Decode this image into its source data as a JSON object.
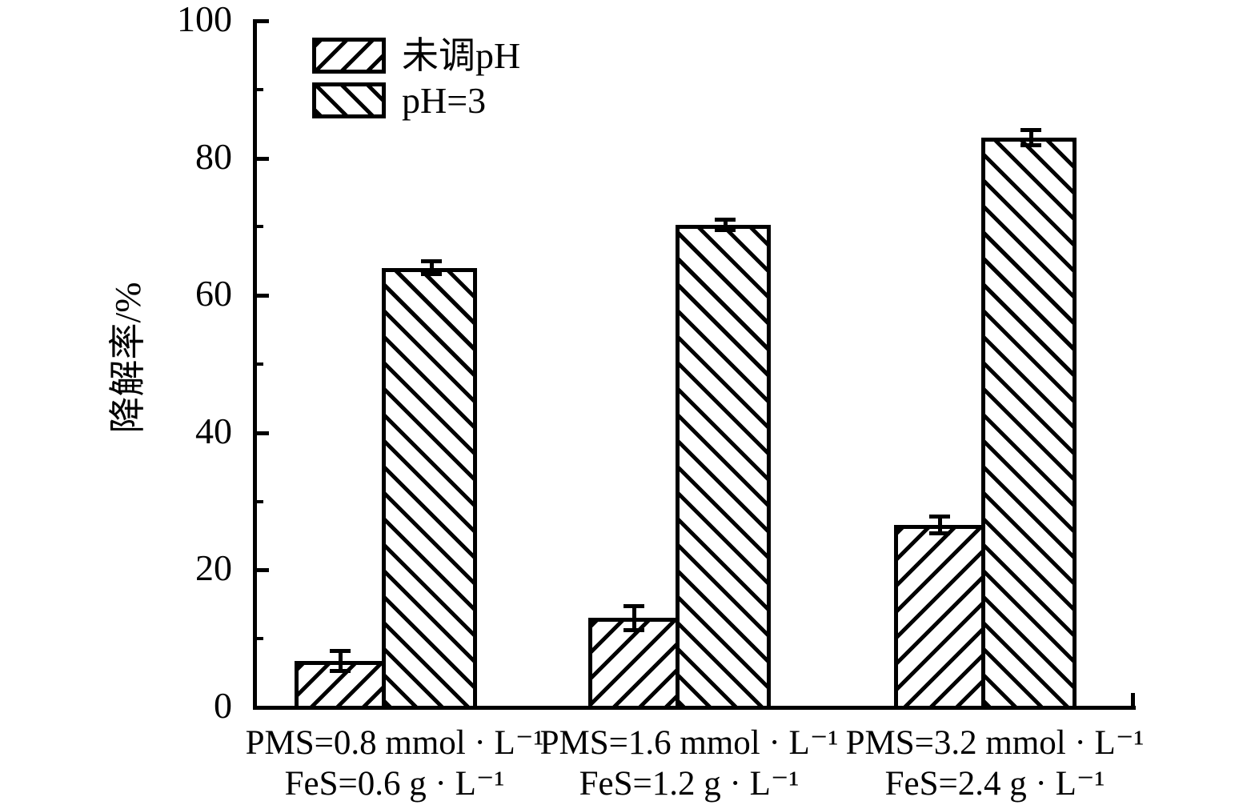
{
  "colors": {
    "foreground": "#000000",
    "background": "#ffffff"
  },
  "chart_data": {
    "type": "bar",
    "title": "",
    "xlabel": "",
    "ylabel": "降解率/%",
    "ylim": [
      0,
      100
    ],
    "yticks_major": [
      0,
      20,
      40,
      60,
      80,
      100
    ],
    "yticks_minor": [
      10,
      30,
      50,
      70,
      90
    ],
    "grid": false,
    "legend_position": "top-left-inside",
    "bar_style": {
      "fill": "#ffffff",
      "edge": "#000000"
    },
    "categories": [
      {
        "line1": "PMS=0.8 mmol · L⁻¹",
        "line2": "FeS=0.6 g · L⁻¹"
      },
      {
        "line1": "PMS=1.6 mmol · L⁻¹",
        "line2": "FeS=1.2 g · L⁻¹"
      },
      {
        "line1": "PMS=3.2 mmol · L⁻¹",
        "line2": "FeS=2.4 g · L⁻¹"
      }
    ],
    "series": [
      {
        "name": "未调pH",
        "hatch": "/",
        "values": [
          6.8,
          13.0,
          26.6
        ],
        "errors": [
          1.5,
          1.8,
          1.3
        ]
      },
      {
        "name": "pH=3",
        "hatch": "\\",
        "values": [
          64.0,
          70.3,
          83.0
        ],
        "errors": [
          1.0,
          0.8,
          1.2
        ]
      }
    ]
  }
}
